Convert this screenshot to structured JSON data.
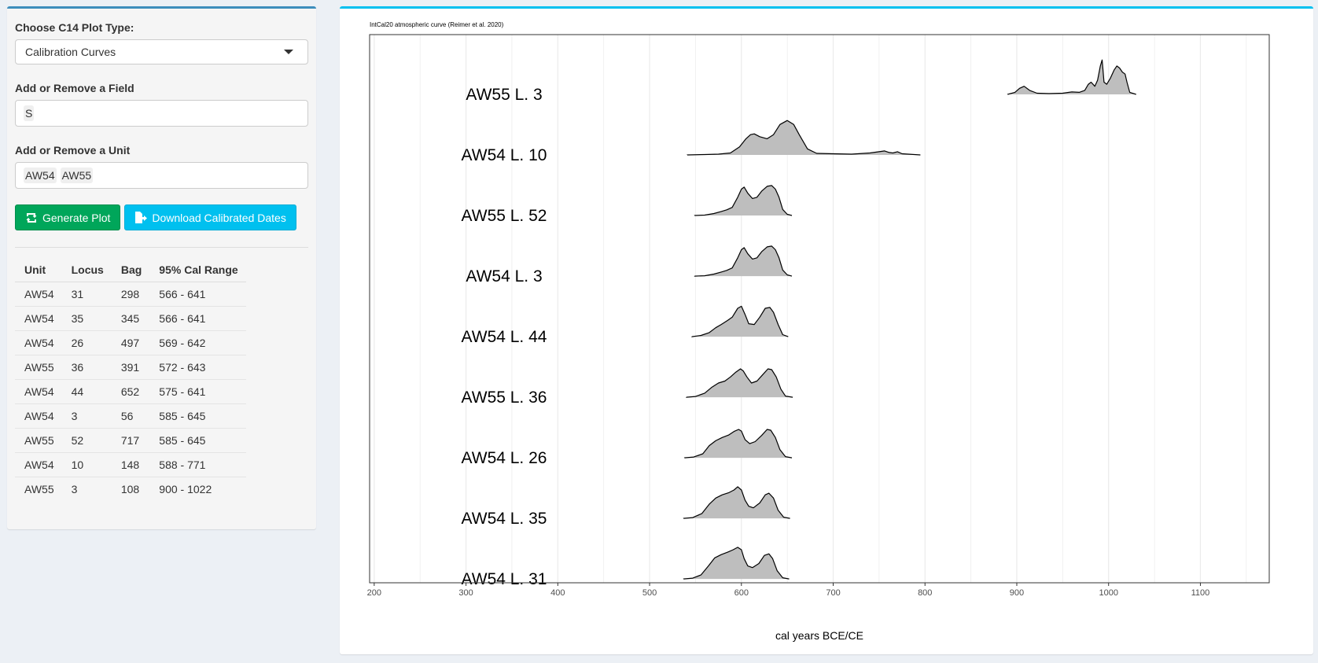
{
  "sidebar": {
    "plot_type_label": "Choose C14 Plot Type:",
    "plot_type_value": "Calibration Curves",
    "field_label": "Add or Remove a Field",
    "field_tags": [
      "S"
    ],
    "unit_label": "Add or Remove a Unit",
    "unit_tags": [
      "AW54",
      "AW55"
    ],
    "generate_label": "Generate Plot",
    "download_label": "Download Calibrated Dates",
    "generate_icon": "refresh-icon",
    "download_icon": "file-export-icon"
  },
  "table": {
    "headers": [
      "Unit",
      "Locus",
      "Bag",
      "95% Cal Range"
    ],
    "rows": [
      [
        "AW54",
        "31",
        "298",
        "566 - 641"
      ],
      [
        "AW54",
        "35",
        "345",
        "566 - 641"
      ],
      [
        "AW54",
        "26",
        "497",
        "569 - 642"
      ],
      [
        "AW55",
        "36",
        "391",
        "572 - 643"
      ],
      [
        "AW54",
        "44",
        "652",
        "575 - 641"
      ],
      [
        "AW54",
        "3",
        "56",
        "585 - 645"
      ],
      [
        "AW55",
        "52",
        "717",
        "585 - 645"
      ],
      [
        "AW54",
        "10",
        "148",
        "588 - 771"
      ],
      [
        "AW55",
        "3",
        "108",
        "900 - 1022"
      ]
    ]
  },
  "chart_data": {
    "type": "area",
    "title": "IntCal20 atmospheric curve (Reimer et al. 2020)",
    "xlabel": "cal years BCE/CE",
    "ylabel": "",
    "xlim": [
      195,
      1175
    ],
    "xticks": [
      200,
      300,
      400,
      500,
      600,
      700,
      800,
      900,
      1000,
      1100
    ],
    "grid": true,
    "fill_color": "#bebebe",
    "line_color": "#000000",
    "series": [
      {
        "name": "AW55 L. 3",
        "x": [
          890,
          898,
          903,
          908,
          914,
          922,
          935,
          950,
          960,
          968,
          974,
          978,
          981,
          985,
          988,
          991,
          993,
          995,
          998,
          1002,
          1006,
          1009,
          1012,
          1015,
          1018,
          1020,
          1023,
          1030
        ],
        "y": [
          0,
          0.05,
          0.15,
          0.2,
          0.1,
          0.03,
          0.02,
          0.03,
          0.06,
          0.05,
          0.1,
          0.25,
          0.3,
          0.2,
          0.35,
          0.7,
          0.85,
          0.3,
          0.25,
          0.4,
          0.6,
          0.7,
          0.65,
          0.55,
          0.5,
          0.3,
          0.05,
          0
        ]
      },
      {
        "name": "AW54 L. 10",
        "x": [
          541,
          560,
          575,
          588,
          598,
          605,
          610,
          614,
          620,
          628,
          635,
          642,
          650,
          657,
          663,
          672,
          682,
          700,
          720,
          740,
          750,
          756,
          761,
          765,
          770,
          775,
          795
        ],
        "y": [
          0,
          0.01,
          0.02,
          0.05,
          0.2,
          0.4,
          0.5,
          0.52,
          0.45,
          0.4,
          0.5,
          0.75,
          0.85,
          0.75,
          0.5,
          0.15,
          0.04,
          0.03,
          0.02,
          0.05,
          0.08,
          0.1,
          0.06,
          0.05,
          0.08,
          0.03,
          0
        ]
      },
      {
        "name": "AW55 L. 52",
        "x": [
          549,
          560,
          570,
          578,
          584,
          590,
          596,
          600,
          603,
          607,
          612,
          617,
          622,
          628,
          633,
          637,
          641,
          645,
          650,
          655
        ],
        "y": [
          0,
          0.01,
          0.05,
          0.1,
          0.14,
          0.2,
          0.45,
          0.65,
          0.7,
          0.55,
          0.42,
          0.45,
          0.6,
          0.72,
          0.74,
          0.65,
          0.45,
          0.15,
          0.03,
          0
        ]
      },
      {
        "name": "AW54 L. 3",
        "x": [
          549,
          560,
          570,
          578,
          584,
          590,
          596,
          600,
          603,
          607,
          612,
          617,
          622,
          628,
          633,
          637,
          641,
          645,
          650,
          655
        ],
        "y": [
          0,
          0.01,
          0.05,
          0.1,
          0.14,
          0.2,
          0.45,
          0.65,
          0.7,
          0.55,
          0.42,
          0.45,
          0.6,
          0.72,
          0.74,
          0.65,
          0.45,
          0.15,
          0.03,
          0
        ]
      },
      {
        "name": "AW54 L. 44",
        "x": [
          546,
          556,
          565,
          572,
          578,
          585,
          590,
          596,
          600,
          604,
          608,
          614,
          620,
          626,
          631,
          635,
          640,
          645,
          651
        ],
        "y": [
          0,
          0.03,
          0.1,
          0.22,
          0.3,
          0.4,
          0.48,
          0.7,
          0.75,
          0.55,
          0.32,
          0.3,
          0.48,
          0.7,
          0.72,
          0.6,
          0.3,
          0.05,
          0
        ]
      },
      {
        "name": "AW55 L. 36",
        "x": [
          540,
          550,
          560,
          568,
          575,
          582,
          588,
          594,
          599,
          602,
          606,
          611,
          617,
          623,
          629,
          633,
          638,
          643,
          648,
          656
        ],
        "y": [
          0,
          0.02,
          0.1,
          0.25,
          0.35,
          0.4,
          0.5,
          0.62,
          0.7,
          0.65,
          0.5,
          0.35,
          0.4,
          0.55,
          0.7,
          0.68,
          0.5,
          0.2,
          0.03,
          0
        ]
      },
      {
        "name": "AW54 L. 26",
        "x": [
          538,
          548,
          558,
          565,
          572,
          579,
          586,
          592,
          597,
          600,
          604,
          609,
          615,
          622,
          628,
          632,
          637,
          642,
          648,
          655
        ],
        "y": [
          0,
          0.02,
          0.1,
          0.3,
          0.42,
          0.5,
          0.56,
          0.65,
          0.7,
          0.66,
          0.45,
          0.35,
          0.4,
          0.55,
          0.7,
          0.68,
          0.5,
          0.2,
          0.03,
          0
        ]
      },
      {
        "name": "AW54 L. 35",
        "x": [
          537,
          547,
          557,
          565,
          572,
          579,
          586,
          592,
          596,
          600,
          604,
          608,
          613,
          620,
          626,
          630,
          635,
          640,
          646,
          653
        ],
        "y": [
          0,
          0.02,
          0.12,
          0.35,
          0.5,
          0.58,
          0.63,
          0.7,
          0.78,
          0.7,
          0.45,
          0.3,
          0.26,
          0.38,
          0.58,
          0.62,
          0.5,
          0.2,
          0.03,
          0
        ]
      },
      {
        "name": "AW54 L. 31",
        "x": [
          537,
          547,
          556,
          564,
          571,
          578,
          585,
          591,
          596,
          600,
          603,
          607,
          612,
          619,
          625,
          630,
          634,
          639,
          645,
          652
        ],
        "y": [
          0,
          0.02,
          0.1,
          0.32,
          0.52,
          0.6,
          0.66,
          0.72,
          0.78,
          0.72,
          0.5,
          0.32,
          0.28,
          0.38,
          0.58,
          0.62,
          0.5,
          0.2,
          0.03,
          0
        ]
      }
    ]
  }
}
